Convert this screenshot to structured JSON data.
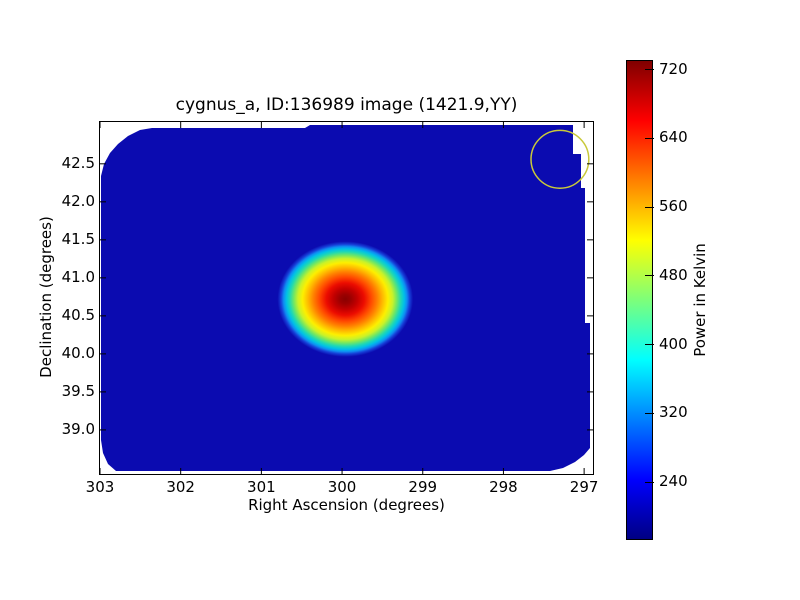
{
  "figure": {
    "background_color": "#ffffff"
  },
  "chart_data": {
    "type": "heatmap",
    "title": "cygnus_a, ID:136989 image (1421.9,YY)",
    "xlabel": "Right Ascension (degrees)",
    "ylabel": "Declination (degrees)",
    "x_axis_inverted": true,
    "xlim": [
      303.0,
      296.89
    ],
    "ylim": [
      38.42,
      43.05
    ],
    "x_ticks": {
      "values": [
        303,
        302,
        301,
        300,
        299,
        298,
        297
      ],
      "labels": [
        "303",
        "302",
        "301",
        "300",
        "299",
        "298",
        "297"
      ]
    },
    "y_ticks": {
      "values": [
        42.5,
        42.0,
        41.5,
        41.0,
        40.5,
        40.0,
        39.5,
        39.0
      ],
      "labels": [
        "42.5",
        "42.0",
        "41.5",
        "41.0",
        "40.5",
        "40.0",
        "39.5",
        "39.0"
      ]
    },
    "grid": false,
    "legend": "none",
    "colormap": "jet",
    "heatmap": {
      "background_color": "#0b0bb0",
      "background_value_kelvin": 205,
      "masked_region_color": "#ffffff"
    },
    "source_peak": {
      "name": "cygnus_a",
      "ra_deg": 299.96,
      "dec_deg": 40.72,
      "peak_value_kelvin": 730,
      "extent_ra_deg": 0.84,
      "extent_dec_deg": 0.76
    },
    "annotation_circle": {
      "ra_deg": 297.3,
      "dec_deg": 42.56,
      "radius_deg": 0.38,
      "color": "#c9c93a"
    },
    "colorbar": {
      "label": "Power in Kelvin",
      "tick_values": [
        720,
        640,
        560,
        480,
        400,
        320,
        240
      ],
      "tick_labels": [
        "720",
        "640",
        "560",
        "480",
        "400",
        "320",
        "240"
      ],
      "clim": [
        174,
        730
      ],
      "position": "right"
    }
  }
}
